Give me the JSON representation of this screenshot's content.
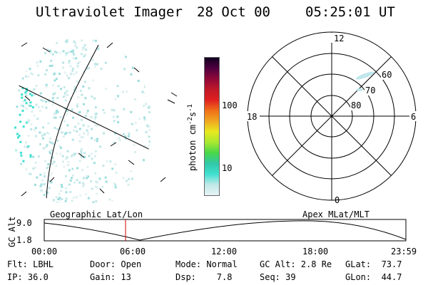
{
  "header": {
    "title": "Ultraviolet Imager",
    "date": "28 Oct 00",
    "time": "05:25:01 UT"
  },
  "colorbar": {
    "label": "photon cm",
    "exp1": "-2",
    "mid": "s",
    "exp2": "-1",
    "ticks": [
      "100",
      "10"
    ]
  },
  "polar_plot": {
    "mlt_labels": {
      "top": "12",
      "left": "18",
      "right": "6",
      "bottom": "0"
    },
    "lat_labels": [
      "60",
      "70",
      "80"
    ]
  },
  "timeline": {
    "left_label": "Geographic Lat/Lon",
    "right_label": "Apex MLat/MLT",
    "axis_label": "GC Alt",
    "y_ticks": [
      "9.0",
      "1.8"
    ],
    "x_ticks": [
      "00:00",
      "06:00",
      "12:00",
      "18:00",
      "23:59"
    ]
  },
  "info": {
    "filt": "Flt: LBHL",
    "ip": "IP: 36.0",
    "door": "Door: Open",
    "gain": "Gain: 13",
    "mode": "Mode: Normal",
    "dsp": "Dsp:    7.8",
    "gcalt": "GC Alt: 2.8 Re",
    "seq": "Seq: 39",
    "glat": "GLat:  73.7",
    "glon": "GLon:  44.7"
  },
  "colors": {
    "colorbar_stops": [
      "#e8f4f4",
      "#bfe8e8",
      "#40e0d0",
      "#30c8a8",
      "#48d848",
      "#a8e830",
      "#e8e820",
      "#f0a820",
      "#f07018",
      "#e02020",
      "#c01828",
      "#900838",
      "#500040",
      "#100020"
    ],
    "time_marker": "#cc0000"
  }
}
